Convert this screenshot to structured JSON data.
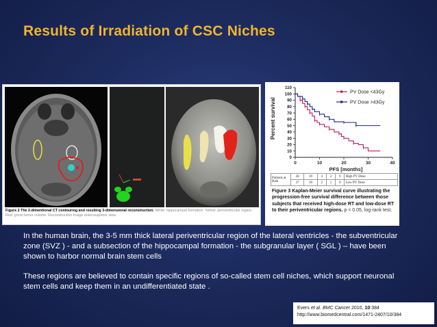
{
  "slide": {
    "title": "Results of Irradiation of CSC Niches",
    "body": {
      "paragraph1": "In the human brain, the 3-5 mm  thick lateral periventricular region of the lateral ventricles - the subventricular zone (SVZ ) - and a subsection of the hippocampal formation - the subgranular layer  ( SGL ) – have been shown to harbor normal brain stem cells",
      "paragraph2": "These regions are believed to contain specific regions of so-called stem cell niches, which support neuronal stem cells and keep them in an undifferentiated state ."
    },
    "citation": {
      "authors": "Evers ",
      "etal": "et al.",
      "journal": " BMC Cancer",
      "year": " 2010, ",
      "volume": "10",
      "article": ":384",
      "url": "http://www.biomedcentral.com/1471-2407/10/384"
    }
  },
  "figure2": {
    "caption_label": "Figure 2",
    "caption_title": " The 2-dimentional CT contouring and resulting 3-dimensional reconstruction.",
    "caption_detail": " White: hippocampal formation. Yellow: periventricular region. Red: gross tumor volume. Reconstruction image anterosuperior view."
  },
  "figure3": {
    "caption_label": "Figure 3",
    "caption_title": " Kaplan-Meier survival curve illustrating the progression-free survival difference between those subjects that received high-dose RT and low-dose RT to their periventricular regions.",
    "caption_stat": " p < 0.05, log-rank test.",
    "risk_table": {
      "header_label": "Patients at Risk",
      "rows": [
        {
          "values": [
            "28",
            "10",
            "4",
            "2",
            "0"
          ],
          "label": "High PV Dose"
        },
        {
          "values": [
            "27",
            "10",
            "2",
            "1",
            "0"
          ],
          "label": "Low PV Dose"
        }
      ]
    }
  },
  "chart_data": {
    "type": "line",
    "title": "",
    "xlabel": "PFS [months]",
    "ylabel": "Percent survival",
    "xlim": [
      0,
      40
    ],
    "ylim": [
      0,
      110
    ],
    "xticks": [
      0,
      10,
      20,
      30,
      40
    ],
    "yticks": [
      0,
      10,
      20,
      30,
      40,
      50,
      60,
      70,
      80,
      90,
      100,
      110
    ],
    "legend_position": "top-right",
    "step": true,
    "series": [
      {
        "name": "PV Dose <43Gy",
        "color": "#c2185b",
        "x": [
          0,
          1,
          2,
          3,
          4,
          5,
          6,
          7,
          8,
          9,
          10,
          12,
          14,
          16,
          18,
          19,
          20,
          22,
          24,
          26,
          28,
          30,
          35
        ],
        "y": [
          100,
          96,
          90,
          85,
          80,
          75,
          70,
          65,
          58,
          55,
          52,
          48,
          44,
          40,
          37,
          33,
          30,
          26,
          22,
          20,
          15,
          10,
          10
        ]
      },
      {
        "name": "PV Dose >43Gy",
        "color": "#1a237e",
        "x": [
          0,
          1,
          3,
          4,
          5,
          6,
          7,
          8,
          10,
          12,
          14,
          16,
          20,
          24,
          25,
          35
        ],
        "y": [
          100,
          96,
          92,
          88,
          84,
          80,
          76,
          72,
          68,
          64,
          60,
          56,
          55,
          55,
          50,
          50
        ]
      }
    ]
  }
}
